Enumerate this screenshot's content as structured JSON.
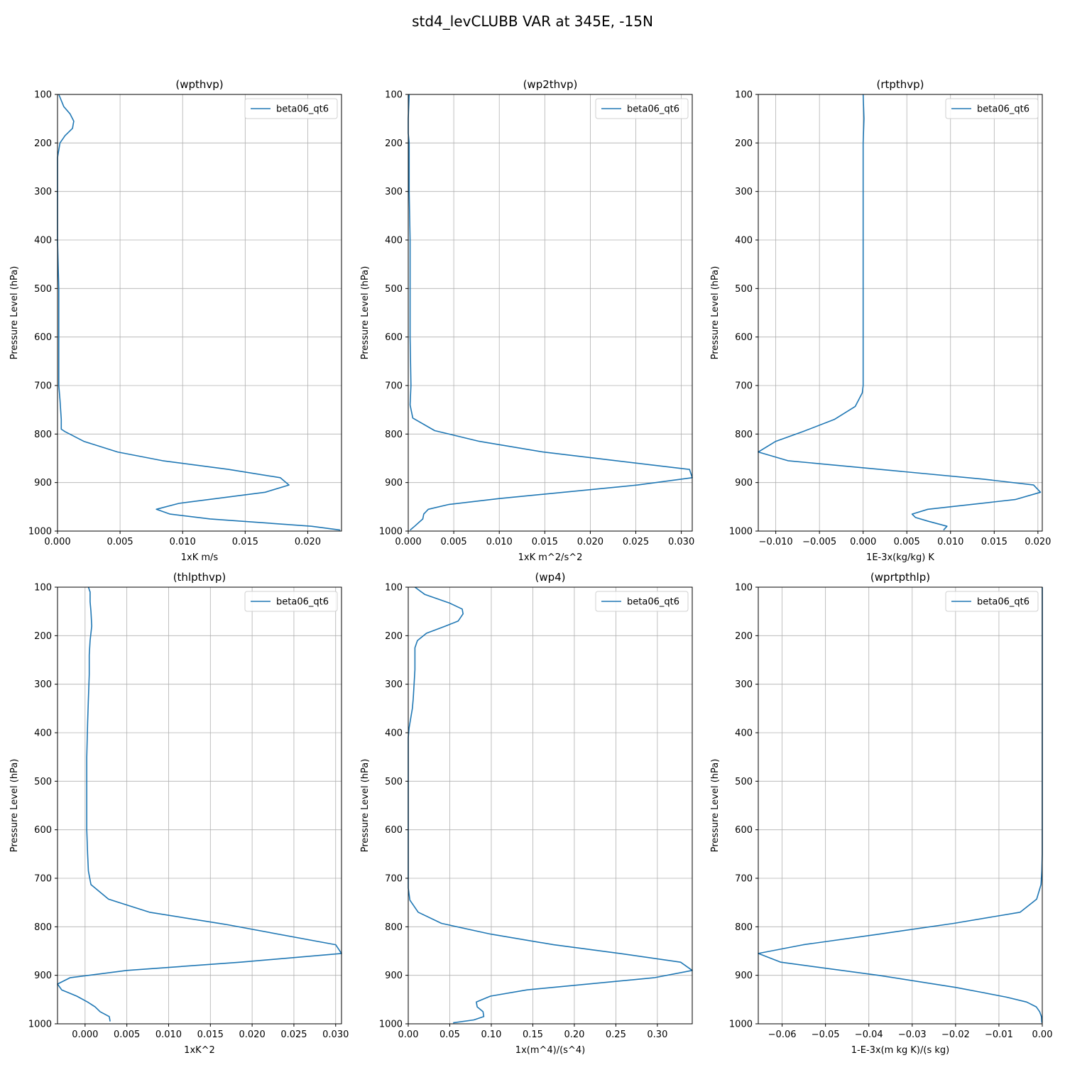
{
  "figure": {
    "suptitle": "std4_levCLUBB VAR at 345E, -15N",
    "line_color": "#1f77b4",
    "grid_color": "#b0b0b0"
  },
  "chart_data": [
    {
      "type": "line",
      "title": "(wpthvp)",
      "xlabel": "1xK m/s",
      "ylabel": "Pressure Level (hPa)",
      "legend": "top-right",
      "grid": true,
      "xlim": [
        0.0,
        0.0227
      ],
      "ylim": [
        1000,
        100
      ],
      "y_inverted": true,
      "xticks": [
        0.0,
        0.005,
        0.01,
        0.015,
        0.02
      ],
      "xtick_labels": [
        "0.000",
        "0.005",
        "0.010",
        "0.015",
        "0.020"
      ],
      "yticks": [
        100,
        200,
        300,
        400,
        500,
        600,
        700,
        800,
        900,
        1000
      ],
      "ytick_labels": [
        "100",
        "200",
        "300",
        "400",
        "500",
        "600",
        "700",
        "800",
        "900",
        "1000"
      ],
      "series": [
        {
          "name": "beta06_qt6",
          "x": [
            0.0001,
            0.0005,
            0.001,
            0.0013,
            0.0012,
            0.0006,
            0.0002,
            0.0,
            0.0,
            0.0,
            0.0001,
            0.0001,
            0.0001,
            0.0001,
            0.0002,
            0.0003,
            0.0003,
            0.0006,
            0.0021,
            0.0048,
            0.0084,
            0.0137,
            0.0178,
            0.0185,
            0.0166,
            0.0097,
            0.0079,
            0.009,
            0.0122,
            0.0203,
            0.0226
          ],
          "y": [
            100,
            125,
            140,
            155,
            170,
            185,
            200,
            230,
            300,
            400,
            500,
            600,
            650,
            700,
            730,
            770,
            790,
            795,
            815,
            837,
            855,
            873,
            890,
            905,
            920,
            943,
            955,
            965,
            975,
            990,
            998
          ]
        }
      ]
    },
    {
      "type": "line",
      "title": "(wp2thvp)",
      "xlabel": "1xK m^2/s^2",
      "ylabel": "Pressure Level (hPa)",
      "legend": "top-right",
      "grid": true,
      "xlim": [
        0.0,
        0.0312
      ],
      "ylim": [
        1000,
        100
      ],
      "y_inverted": true,
      "xticks": [
        0.0,
        0.005,
        0.01,
        0.015,
        0.02,
        0.025,
        0.03
      ],
      "xtick_labels": [
        "0.000",
        "0.005",
        "0.010",
        "0.015",
        "0.020",
        "0.025",
        "0.030"
      ],
      "yticks": [
        100,
        200,
        300,
        400,
        500,
        600,
        700,
        800,
        900,
        1000
      ],
      "ytick_labels": [
        "100",
        "200",
        "300",
        "400",
        "500",
        "600",
        "700",
        "800",
        "900",
        "1000"
      ],
      "series": [
        {
          "name": "beta06_qt6",
          "x": [
            0.0001,
            0.0,
            0.0,
            0.0001,
            0.0001,
            0.0002,
            0.0002,
            0.0002,
            0.0003,
            0.0002,
            0.0005,
            0.0029,
            0.0078,
            0.0148,
            0.0309,
            0.0312,
            0.0252,
            0.01,
            0.0045,
            0.0022,
            0.0017,
            0.0016,
            0.0007,
            0.0002
          ],
          "y": [
            100,
            150,
            180,
            200,
            300,
            400,
            500,
            600,
            700,
            740,
            767,
            793,
            815,
            837,
            873,
            890,
            905,
            933,
            945,
            955,
            965,
            975,
            990,
            998
          ]
        }
      ]
    },
    {
      "type": "line",
      "title": "(rtpthvp)",
      "xlabel": "1E-3x(kg/kg) K",
      "ylabel": "Pressure Level (hPa)",
      "legend": "top-right",
      "grid": true,
      "xlim": [
        -0.012,
        0.0205
      ],
      "ylim": [
        1000,
        100
      ],
      "y_inverted": true,
      "xticks": [
        -0.01,
        -0.005,
        0.0,
        0.005,
        0.01,
        0.015,
        0.02
      ],
      "xtick_labels": [
        "−0.010",
        "−0.005",
        "0.000",
        "0.005",
        "0.010",
        "0.015",
        "0.020"
      ],
      "yticks": [
        100,
        200,
        300,
        400,
        500,
        600,
        700,
        800,
        900,
        1000
      ],
      "ytick_labels": [
        "100",
        "200",
        "300",
        "400",
        "500",
        "600",
        "700",
        "800",
        "900",
        "1000"
      ],
      "series": [
        {
          "name": "beta06_qt6",
          "x": [
            0.0,
            0.0001,
            0.0,
            0.0,
            0.0,
            0.0,
            0.0,
            0.0,
            -0.0001,
            -0.0009,
            -0.0033,
            -0.0069,
            -0.01,
            -0.012,
            -0.0086,
            0.0138,
            0.0195,
            0.0203,
            0.0174,
            0.0074,
            0.0056,
            0.006,
            0.0075,
            0.0096,
            0.0092
          ],
          "y": [
            100,
            150,
            200,
            300,
            400,
            500,
            600,
            700,
            715,
            743,
            770,
            795,
            815,
            837,
            855,
            893,
            905,
            920,
            935,
            955,
            965,
            972,
            980,
            990,
            998
          ]
        }
      ]
    },
    {
      "type": "line",
      "title": "(thlpthvp)",
      "xlabel": "1xK^2",
      "ylabel": "Pressure Level (hPa)",
      "legend": "top-right",
      "grid": true,
      "xlim": [
        -0.0033,
        0.0307
      ],
      "ylim": [
        1000,
        100
      ],
      "y_inverted": true,
      "xticks": [
        0.0,
        0.005,
        0.01,
        0.015,
        0.02,
        0.025,
        0.03
      ],
      "xtick_labels": [
        "0.000",
        "0.005",
        "0.010",
        "0.015",
        "0.020",
        "0.025",
        "0.030"
      ],
      "yticks": [
        100,
        200,
        300,
        400,
        500,
        600,
        700,
        800,
        900,
        1000
      ],
      "ytick_labels": [
        "100",
        "200",
        "300",
        "400",
        "500",
        "600",
        "700",
        "800",
        "900",
        "1000"
      ],
      "series": [
        {
          "name": "beta06_qt6",
          "x": [
            0.0004,
            0.0006,
            0.0006,
            0.0007,
            0.0008,
            0.0006,
            0.0005,
            0.0005,
            0.0004,
            0.0003,
            0.0002,
            0.0002,
            0.0002,
            0.0003,
            0.0004,
            0.0007,
            0.0028,
            0.0077,
            0.0168,
            0.03,
            0.0307,
            0.0186,
            0.005,
            -0.0018,
            -0.0033,
            -0.0028,
            -0.001,
            0.0003,
            0.0012,
            0.0018,
            0.0029,
            0.003
          ],
          "y": [
            100,
            110,
            130,
            150,
            180,
            210,
            240,
            280,
            330,
            380,
            450,
            550,
            600,
            650,
            685,
            713,
            743,
            770,
            795,
            837,
            855,
            873,
            890,
            905,
            918,
            930,
            943,
            955,
            965,
            975,
            985,
            995
          ]
        }
      ]
    },
    {
      "type": "line",
      "title": "(wp4)",
      "xlabel": "1x(m^4)/(s^4)",
      "ylabel": "Pressure Level (hPa)",
      "legend": "top-right",
      "grid": true,
      "xlim": [
        0.0,
        0.342
      ],
      "ylim": [
        1000,
        100
      ],
      "y_inverted": true,
      "xticks": [
        0.0,
        0.05,
        0.1,
        0.15,
        0.2,
        0.25,
        0.3
      ],
      "xtick_labels": [
        "0.00",
        "0.05",
        "0.10",
        "0.15",
        "0.20",
        "0.25",
        "0.30"
      ],
      "yticks": [
        100,
        200,
        300,
        400,
        500,
        600,
        700,
        800,
        900,
        1000
      ],
      "ytick_labels": [
        "100",
        "200",
        "300",
        "400",
        "500",
        "600",
        "700",
        "800",
        "900",
        "1000"
      ],
      "series": [
        {
          "name": "beta06_qt6",
          "x": [
            0.008,
            0.02,
            0.05,
            0.065,
            0.066,
            0.06,
            0.045,
            0.022,
            0.011,
            0.008,
            0.008,
            0.008,
            0.007,
            0.006,
            0.005,
            0.003,
            0.001,
            0.0,
            0.0,
            0.0,
            0.0,
            0.0,
            0.002,
            0.012,
            0.04,
            0.099,
            0.175,
            0.255,
            0.328,
            0.342,
            0.296,
            0.143,
            0.099,
            0.082,
            0.083,
            0.09,
            0.091,
            0.079,
            0.054
          ],
          "y": [
            100,
            115,
            133,
            145,
            155,
            170,
            180,
            195,
            210,
            225,
            240,
            270,
            300,
            330,
            350,
            370,
            390,
            410,
            450,
            550,
            650,
            720,
            745,
            770,
            793,
            815,
            837,
            855,
            873,
            890,
            905,
            930,
            943,
            955,
            965,
            975,
            985,
            992,
            998
          ]
        }
      ]
    },
    {
      "type": "line",
      "title": "(wprtpthlp)",
      "xlabel": "1-E-3x(m kg K)/(s kg)",
      "ylabel": "Pressure Level (hPa)",
      "legend": "top-right",
      "grid": true,
      "xlim": [
        -0.0655,
        0.0
      ],
      "ylim": [
        1000,
        100
      ],
      "y_inverted": true,
      "xticks": [
        -0.06,
        -0.05,
        -0.04,
        -0.03,
        -0.02,
        -0.01,
        0.0
      ],
      "xtick_labels": [
        "−0.06",
        "−0.05",
        "−0.04",
        "−0.03",
        "−0.02",
        "−0.01",
        "0.00"
      ],
      "yticks": [
        100,
        200,
        300,
        400,
        500,
        600,
        700,
        800,
        900,
        1000
      ],
      "ytick_labels": [
        "100",
        "200",
        "300",
        "400",
        "500",
        "600",
        "700",
        "800",
        "900",
        "1000"
      ],
      "series": [
        {
          "name": "beta06_qt6",
          "x": [
            0.0,
            0.0,
            0.0,
            0.0,
            0.0,
            -0.0001,
            -0.0003,
            -0.0013,
            -0.0051,
            -0.0204,
            -0.0375,
            -0.0551,
            -0.0655,
            -0.0603,
            -0.0378,
            -0.0199,
            -0.014,
            -0.0083,
            -0.0036,
            -0.0014,
            -0.0006,
            -0.0002,
            -0.0001
          ],
          "y": [
            100,
            300,
            500,
            600,
            650,
            685,
            713,
            743,
            770,
            793,
            815,
            837,
            855,
            873,
            900,
            925,
            935,
            945,
            955,
            965,
            975,
            985,
            998
          ]
        }
      ]
    }
  ]
}
